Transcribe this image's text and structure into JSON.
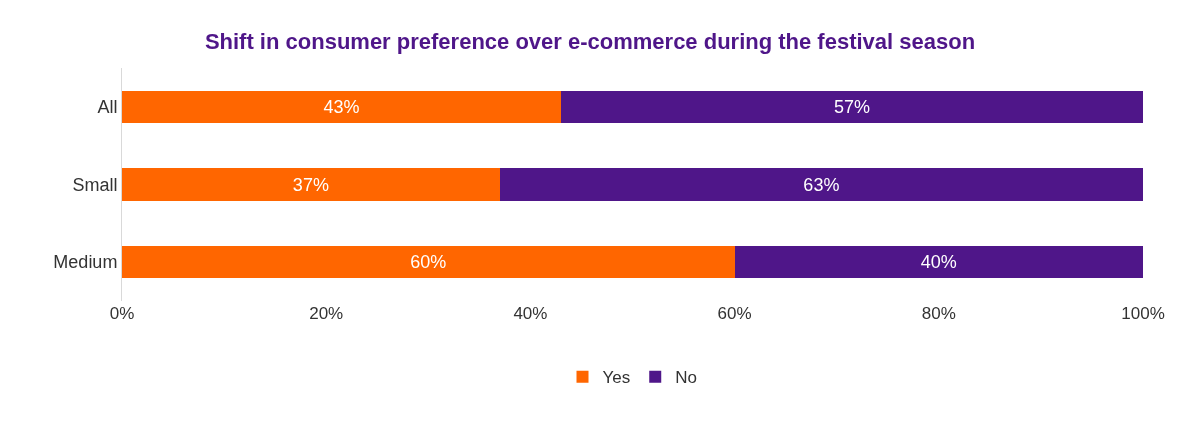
{
  "chart_data": {
    "type": "bar",
    "orientation": "horizontal",
    "stacked": true,
    "title": "Shift in consumer preference over e-commerce during the festival season",
    "categories": [
      "All",
      "Small",
      "Medium"
    ],
    "series": [
      {
        "name": "Yes",
        "color": "#ff6600",
        "values": [
          43,
          37,
          60
        ],
        "value_labels": [
          "43%",
          "37%",
          "60%"
        ]
      },
      {
        "name": "No",
        "color": "#4f1689",
        "values": [
          57,
          63,
          40
        ],
        "value_labels": [
          "57%",
          "63%",
          "40%"
        ]
      }
    ],
    "xlim": [
      0,
      100
    ],
    "xticks": [
      {
        "value": 0,
        "label": "0%"
      },
      {
        "value": 20,
        "label": "20%"
      },
      {
        "value": 40,
        "label": "40%"
      },
      {
        "value": 60,
        "label": "60%"
      },
      {
        "value": 80,
        "label": "80%"
      },
      {
        "value": 100,
        "label": "100%"
      }
    ],
    "legend": "bottom"
  }
}
